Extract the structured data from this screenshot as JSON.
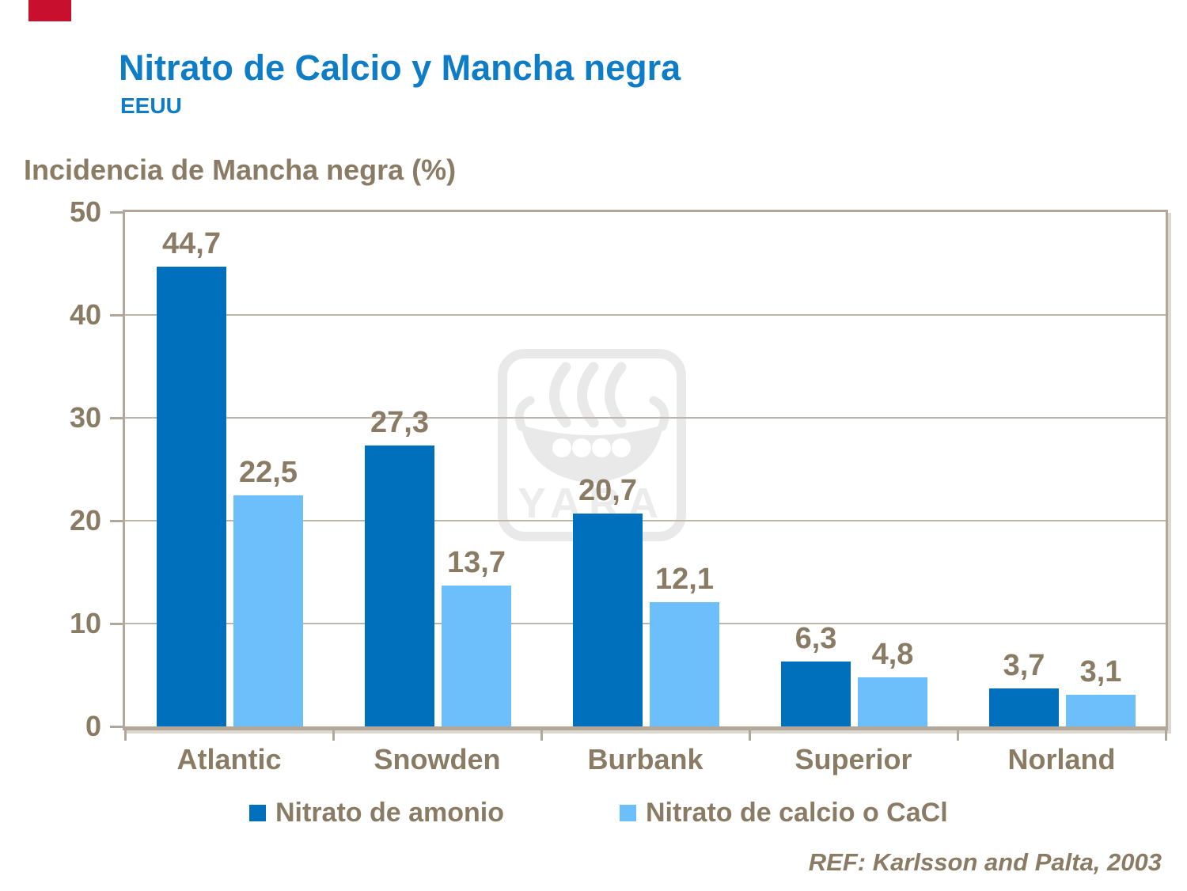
{
  "header": {
    "title": "Nitrato de Calcio y Mancha negra",
    "subtitle": "EEUU"
  },
  "chart": {
    "y_axis_title": "Incidencia de Mancha negra (%)"
  },
  "footer": {
    "reference": "REF: Karlsson and Palta, 2003"
  },
  "watermark_text": "YARA",
  "colors": {
    "title_blue": "#0F7CC6",
    "series_dark_blue": "#0070BD",
    "series_light_blue": "#6DBFFB",
    "text_brown": "#8A7B64",
    "frame_tan": "#B1A79B",
    "gridline_tan": "#BFB6AA",
    "watermark_gray": "#E9E9E9",
    "red_marker": "#C8102E"
  },
  "chart_data": {
    "type": "bar",
    "title": "Nitrato de Calcio y Mancha negra — EEUU",
    "ylabel": "Incidencia de Mancha negra (%)",
    "xlabel": "",
    "categories": [
      "Atlantic",
      "Snowden",
      "Burbank",
      "Superior",
      "Norland"
    ],
    "series": [
      {
        "name": "Nitrato de amonio",
        "color": "#0070BD",
        "values": [
          44.7,
          27.3,
          20.7,
          6.3,
          3.7
        ]
      },
      {
        "name": "Nitrato de calcio o CaCl",
        "color": "#6DBFFB",
        "values": [
          22.5,
          13.7,
          12.1,
          4.8,
          3.1
        ]
      }
    ],
    "decimal_separator": ",",
    "ylim": [
      0,
      50
    ],
    "yticks": [
      0,
      10,
      20,
      30,
      40,
      50
    ],
    "grid": true,
    "legend_position": "bottom"
  }
}
